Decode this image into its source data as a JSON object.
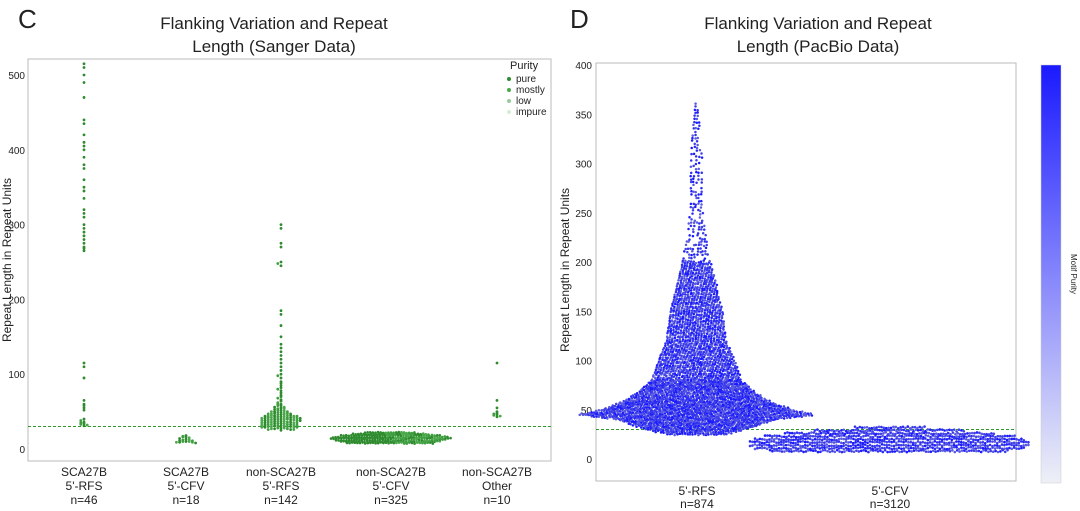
{
  "chart_data": [
    {
      "type": "scatter",
      "panel_label": "C",
      "title_line1": "Flanking Variation and Repeat",
      "title_line2": "Length (Sanger Data)",
      "xlabel": "",
      "ylabel": "Repeat Length in Repeat Units",
      "ylim": [
        -20,
        525
      ],
      "yticks": [
        0,
        100,
        200,
        300,
        400,
        500
      ],
      "threshold": 30,
      "legend": {
        "title": "Purity",
        "placement": "top-right",
        "entries": [
          {
            "label": "pure",
            "color": "#2e8b2e"
          },
          {
            "label": "mostly",
            "color": "#4aa84a"
          },
          {
            "label": "low",
            "color": "#9acb9a"
          },
          {
            "label": "impure",
            "color": "#d8ecd8"
          }
        ]
      },
      "categories": [
        {
          "line1": "SCA27B",
          "line2": "5'-RFS",
          "line3": "n=46",
          "values": [
            515,
            510,
            500,
            490,
            470,
            440,
            435,
            420,
            410,
            405,
            400,
            390,
            380,
            375,
            360,
            350,
            345,
            335,
            320,
            315,
            310,
            300,
            295,
            290,
            285,
            280,
            275,
            270,
            268,
            265,
            115,
            110,
            95,
            65,
            60,
            58,
            55,
            52,
            40,
            38,
            36,
            35,
            34,
            33,
            32,
            31
          ]
        },
        {
          "line1": "SCA27B",
          "line2": "5'-CFV",
          "line3": "n=18",
          "values": [
            18,
            17,
            16,
            16,
            15,
            14,
            13,
            12,
            12,
            11,
            11,
            10,
            10,
            10,
            9,
            9,
            9,
            8
          ]
        },
        {
          "line1": "non-SCA27B",
          "line2": "5'-RFS",
          "line3": "n=142",
          "values": [
            300,
            295,
            275,
            270,
            250,
            248,
            245,
            185,
            180,
            165,
            150,
            140,
            135,
            130,
            125,
            120,
            115,
            110,
            105,
            100,
            98,
            95,
            90,
            88,
            85,
            82,
            80,
            78,
            75,
            72,
            70,
            68,
            66,
            64,
            62,
            60,
            60,
            58,
            58,
            56,
            56,
            55,
            54,
            54,
            53,
            52,
            52,
            51,
            50,
            50,
            50,
            49,
            49,
            48,
            48,
            48,
            47,
            47,
            47,
            46,
            46,
            46,
            45,
            45,
            45,
            45,
            44,
            44,
            44,
            44,
            43,
            43,
            43,
            43,
            42,
            42,
            42,
            42,
            42,
            41,
            41,
            41,
            41,
            40,
            40,
            40,
            40,
            40,
            39,
            39,
            39,
            39,
            38,
            38,
            38,
            38,
            37,
            37,
            37,
            37,
            36,
            36,
            36,
            36,
            35,
            35,
            35,
            35,
            34,
            34,
            34,
            34,
            33,
            33,
            33,
            33,
            32,
            32,
            32,
            32,
            31,
            31,
            31,
            31,
            30,
            30,
            30,
            30,
            29,
            29,
            29,
            29,
            28,
            28,
            28,
            27,
            27,
            27,
            26,
            26,
            26,
            25
          ]
        },
        {
          "line1": "non-SCA27B",
          "line2": "5'-CFV",
          "line3": "n=325",
          "bands": [
            8,
            10,
            12,
            14,
            16,
            18,
            20,
            22
          ],
          "band_widths": [
            44,
            50,
            55,
            60,
            58,
            50,
            38,
            26
          ]
        },
        {
          "line1": "non-SCA27B",
          "line2": "Other",
          "line3": "n=10",
          "values": [
            115,
            65,
            55,
            50,
            48,
            47,
            46,
            45,
            44,
            43
          ]
        }
      ]
    },
    {
      "type": "scatter",
      "panel_label": "D",
      "title_line1": "Flanking Variation and Repeat",
      "title_line2": "Length (PacBio Data)",
      "xlabel": "",
      "ylabel": "Repeat Length in Repeat Units",
      "ylim": [
        -25,
        400
      ],
      "yticks": [
        0,
        50,
        100,
        150,
        200,
        250,
        300,
        350,
        400
      ],
      "threshold": 30,
      "colorbar": {
        "label": "Motif Purity",
        "color_low": "#eef0f7",
        "color_high": "#1a1aff"
      },
      "categories": [
        {
          "line1": "5'-RFS",
          "line2": "n=874",
          "profile": [
            [
              25,
              30
            ],
            [
              30,
              50
            ],
            [
              40,
              80
            ],
            [
              45,
              120
            ],
            [
              50,
              95
            ],
            [
              60,
              70
            ],
            [
              70,
              55
            ],
            [
              80,
              45
            ],
            [
              100,
              38
            ],
            [
              120,
              30
            ],
            [
              150,
              26
            ],
            [
              175,
              20
            ],
            [
              200,
              14
            ],
            [
              230,
              9
            ],
            [
              260,
              6
            ],
            [
              300,
              6
            ],
            [
              320,
              5
            ],
            [
              350,
              2
            ],
            [
              365,
              1
            ]
          ]
        },
        {
          "line1": "5'-CFV",
          "line2": "n=3120",
          "bands": [
            8,
            11,
            14,
            17,
            20,
            23,
            26,
            29,
            32
          ],
          "band_widths": [
            240,
            270,
            280,
            280,
            270,
            250,
            210,
            150,
            70
          ]
        }
      ]
    }
  ]
}
